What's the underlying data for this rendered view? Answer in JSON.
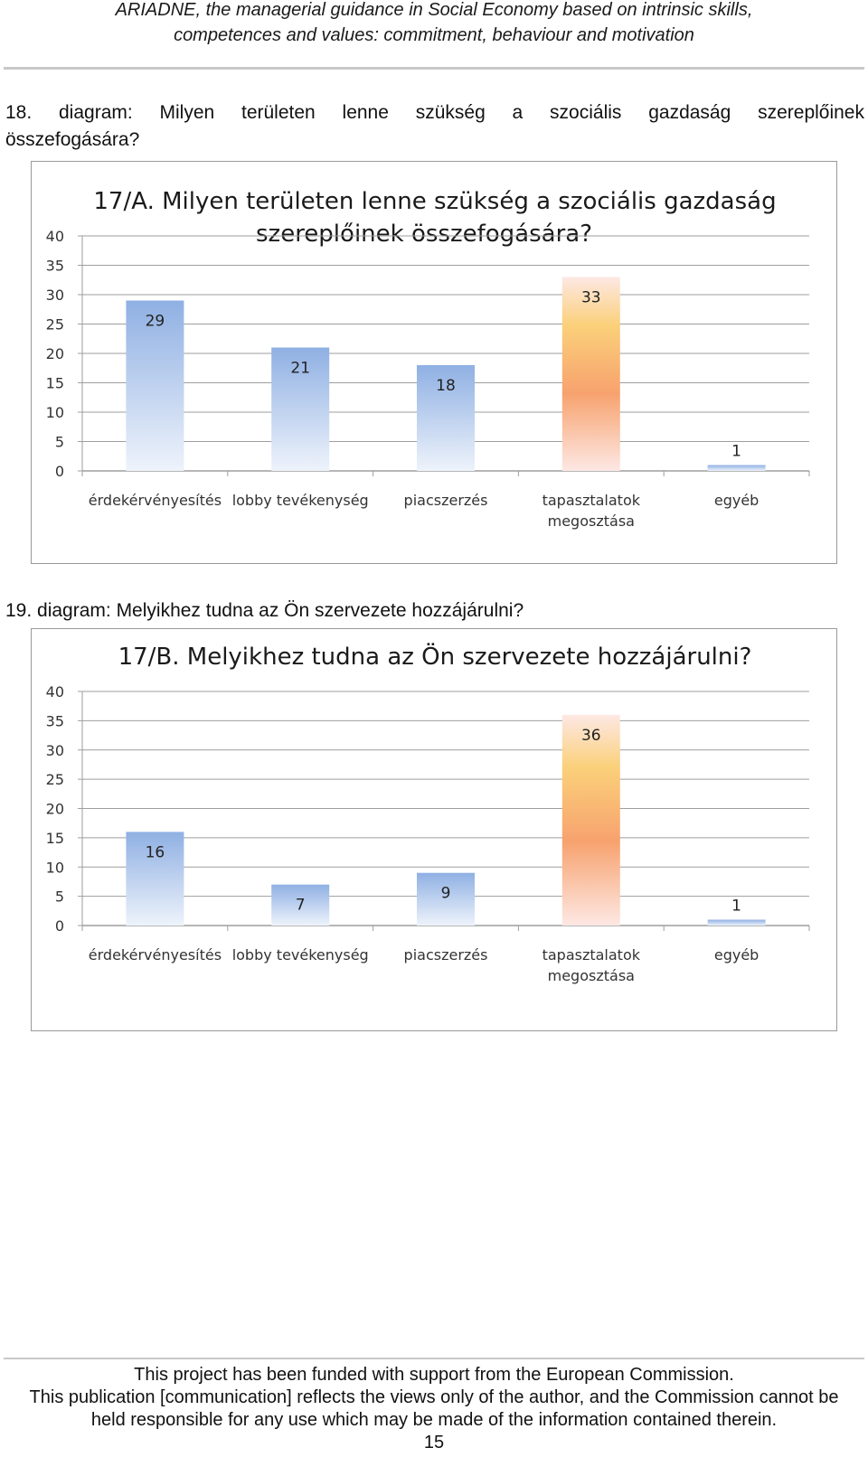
{
  "header": {
    "line1": "ARIADNE, the managerial guidance in Social Economy based on intrinsic skills,",
    "line2": "competences and values: commitment, behaviour and motivation"
  },
  "captions": {
    "diagram18_line1": "18. diagram: Milyen területen lenne szükség a szociális gazdaság szereplőinek",
    "diagram18_line2": "összefogására?",
    "diagram19": "19. diagram: Melyikhez tudna az Ön szervezete hozzájárulni?"
  },
  "colors": {
    "bar_blue_top": "#8fb0e3",
    "bar_blue_bottom": "#eef3fb",
    "bar_orange_mid": "#f7a26e",
    "bar_orange_top": "#fde8e4",
    "bar_orange_yellow": "#fbd07a",
    "grid": "#9e9e9e"
  },
  "chart_data": [
    {
      "type": "bar",
      "title_line1": "17/A. Milyen területen lenne szükség a szociális gazdaság",
      "title_line2": "szereplőinek összefogására?",
      "categories": [
        "érdekérvényesítés",
        "lobby tevékenység",
        "piacszerzés",
        "tapasztalatok megosztása",
        "egyéb"
      ],
      "category_lines": [
        [
          "érdekérvényesítés"
        ],
        [
          "lobby tevékenység"
        ],
        [
          "piacszerzés"
        ],
        [
          "tapasztalatok",
          "megosztása"
        ],
        [
          "egyéb"
        ]
      ],
      "values": [
        29,
        21,
        18,
        33,
        1
      ],
      "highlight_index": 3,
      "ylim": [
        0,
        40
      ],
      "yticks": [
        0,
        5,
        10,
        15,
        20,
        25,
        30,
        35,
        40
      ],
      "xlabel": "",
      "ylabel": "",
      "grid": true
    },
    {
      "type": "bar",
      "title_line1": "17/B. Melyikhez tudna az Ön szervezete hozzájárulni?",
      "title_line2": "",
      "categories": [
        "érdekérvényesítés",
        "lobby tevékenység",
        "piacszerzés",
        "tapasztalatok megosztása",
        "egyéb"
      ],
      "category_lines": [
        [
          "érdekérvényesítés"
        ],
        [
          "lobby tevékenység"
        ],
        [
          "piacszerzés"
        ],
        [
          "tapasztalatok",
          "megosztása"
        ],
        [
          "egyéb"
        ]
      ],
      "values": [
        16,
        7,
        9,
        36,
        1
      ],
      "highlight_index": 3,
      "ylim": [
        0,
        40
      ],
      "yticks": [
        0,
        5,
        10,
        15,
        20,
        25,
        30,
        35,
        40
      ],
      "xlabel": "",
      "ylabel": "",
      "grid": true
    }
  ],
  "footer": {
    "line1": "This project has been funded with support from the European Commission.",
    "line2": "This publication [communication] reflects the views only of the author, and the Commission cannot be",
    "line3": "held responsible for any use which may be made of the information contained therein.",
    "page_number": "15"
  }
}
